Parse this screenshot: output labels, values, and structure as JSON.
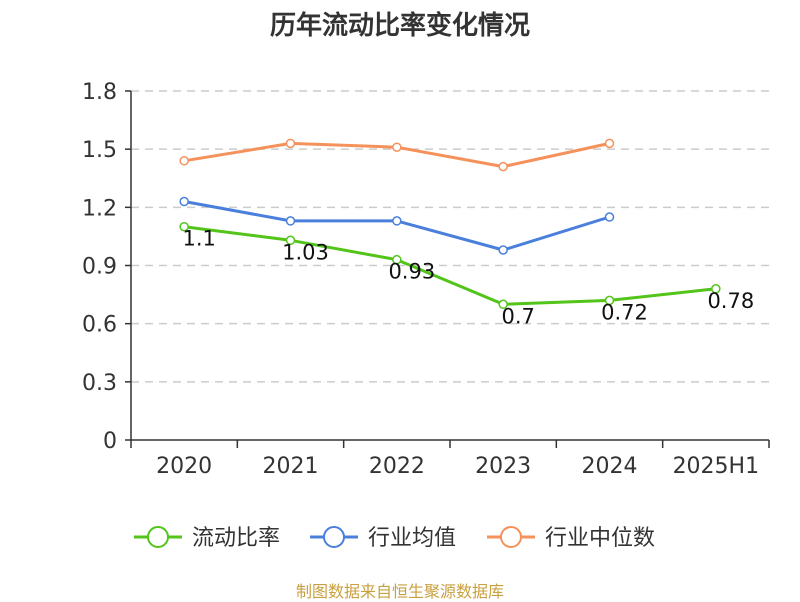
{
  "chart_data": {
    "type": "line",
    "title": "历年流动比率变化情况",
    "categories": [
      "2020",
      "2021",
      "2022",
      "2023",
      "2024",
      "2025H1"
    ],
    "ylim": [
      0,
      1.8
    ],
    "yticks": [
      "0",
      "0.3",
      "0.6",
      "0.9",
      "1.2",
      "1.5",
      "1.8"
    ],
    "grid": true,
    "legend_position": "bottom",
    "series": [
      {
        "name": "流动比率",
        "color": "#52c41a",
        "values": [
          1.1,
          1.03,
          0.93,
          0.7,
          0.72,
          0.78
        ],
        "labels": [
          "1.1",
          "1.03",
          "0.93",
          "0.7",
          "0.72",
          "0.78"
        ]
      },
      {
        "name": "行业均值",
        "color": "#4a7fdc",
        "values": [
          1.23,
          1.13,
          1.13,
          0.98,
          1.15,
          null
        ]
      },
      {
        "name": "行业中位数",
        "color": "#f5915a",
        "values": [
          1.44,
          1.53,
          1.51,
          1.41,
          1.53,
          null
        ]
      }
    ]
  },
  "footer": "制图数据来自恒生聚源数据库"
}
